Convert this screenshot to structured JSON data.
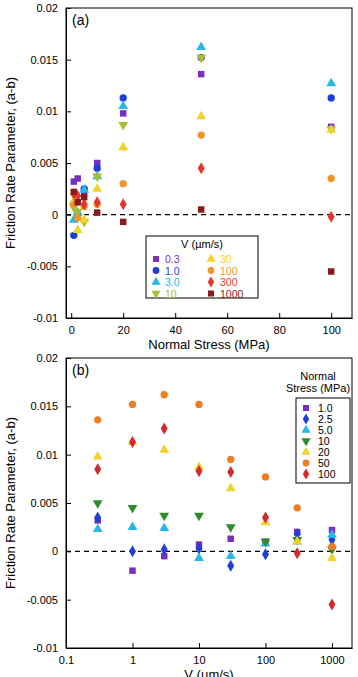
{
  "chart_data": [
    {
      "type": "scatter",
      "panel_label": "(a)",
      "x_label": "Normal Stress (MPa)",
      "y_label": "Friction Rate Parameter, (a-b)",
      "xlim": [
        -2,
        108
      ],
      "xticks": [
        0,
        20,
        40,
        60,
        80,
        100
      ],
      "ylim": [
        -0.01,
        0.02
      ],
      "yticks": [
        -0.01,
        -0.005,
        0,
        0.005,
        0.01,
        0.015,
        0.02
      ],
      "reference_lines": [
        0
      ],
      "legend": "bottom",
      "legend_title": "V (µm/s)",
      "series": [
        {
          "name": "0.3",
          "color": "#7b2fbf",
          "marker": "square",
          "x": [
            1.0,
            2.5,
            5.0,
            10,
            20,
            50,
            100
          ],
          "values": [
            0.0032,
            0.0035,
            0.0023,
            0.005,
            0.0098,
            0.0136,
            0.0085
          ]
        },
        {
          "name": "1.0",
          "color": "#1f3fd9",
          "marker": "circle",
          "x": [
            1.0,
            2.5,
            5.0,
            10,
            20,
            50,
            100
          ],
          "values": [
            -0.002,
            0.0,
            0.0025,
            0.0045,
            0.0113,
            0.0152,
            0.0113
          ]
        },
        {
          "name": "3.0",
          "color": "#29b6e8",
          "marker": "triangle",
          "x": [
            1.0,
            2.5,
            5.0,
            10,
            20,
            50,
            100
          ],
          "values": [
            -0.0005,
            0.0002,
            0.0024,
            0.0037,
            0.0105,
            0.0162,
            0.0127
          ]
        },
        {
          "name": "10",
          "color": "#a9bf2f",
          "marker": "triangle-down",
          "x": [
            1.0,
            2.5,
            5.0,
            10,
            20,
            50,
            100
          ],
          "values": [
            0.0007,
            0.0003,
            -0.0007,
            0.0037,
            0.0087,
            0.0152,
            0.0083
          ]
        },
        {
          "name": "30",
          "color": "#f2d22a",
          "marker": "triangle",
          "x": [
            1.0,
            2.5,
            5.0,
            10,
            20,
            50,
            100
          ],
          "values": [
            0.0013,
            -0.0015,
            -0.0005,
            0.0025,
            0.0065,
            0.0095,
            0.0082
          ]
        },
        {
          "name": "100",
          "color": "#f0952a",
          "marker": "circle",
          "x": [
            1.0,
            2.5,
            5.0,
            10,
            20,
            50,
            100
          ],
          "values": [
            0.001,
            -0.0003,
            0.0008,
            0.001,
            0.003,
            0.0077,
            0.0035
          ]
        },
        {
          "name": "300",
          "color": "#e3372b",
          "marker": "diamond",
          "x": [
            1.0,
            2.5,
            5.0,
            10,
            20,
            50,
            100
          ],
          "values": [
            0.002,
            0.0018,
            0.001,
            0.0012,
            0.001,
            0.0045,
            -0.0002
          ]
        },
        {
          "name": "1000",
          "color": "#8b1a1a",
          "marker": "square",
          "x": [
            1.0,
            2.5,
            5.0,
            10,
            20,
            50,
            100
          ],
          "values": [
            0.0022,
            0.0012,
            0.0017,
            0.0002,
            -0.0007,
            0.0005,
            -0.0055
          ]
        }
      ]
    },
    {
      "type": "scatter",
      "panel_label": "(b)",
      "x_label": "V (µm/s)",
      "y_label": "Friction Rate Parameter, (a-b)",
      "log": "x",
      "xlim": [
        0.1,
        2000
      ],
      "xticks": [
        0.1,
        1,
        10,
        100,
        1000
      ],
      "ylim": [
        -0.01,
        0.02
      ],
      "yticks": [
        -0.01,
        -0.005,
        0,
        0.005,
        0.01,
        0.015,
        0.02
      ],
      "reference_lines": [
        0
      ],
      "legend": "right",
      "legend_title": "Normal Stress (MPa)",
      "series": [
        {
          "name": "1.0",
          "color": "#7b2fbf",
          "marker": "square",
          "x": [
            0.3,
            1,
            3,
            10,
            30,
            100,
            300,
            1000
          ],
          "values": [
            0.0032,
            -0.002,
            -0.0005,
            0.0007,
            0.0013,
            0.001,
            0.002,
            0.0022
          ]
        },
        {
          "name": "2.5",
          "color": "#1f3fd9",
          "marker": "diamond",
          "x": [
            0.3,
            1,
            3,
            10,
            30,
            100,
            300,
            1000
          ],
          "values": [
            0.0035,
            0.0,
            0.0002,
            0.0003,
            -0.0015,
            -0.0003,
            0.0018,
            0.0012
          ]
        },
        {
          "name": "5.0",
          "color": "#29b6e8",
          "marker": "triangle",
          "x": [
            0.3,
            1,
            3,
            10,
            30,
            100,
            300,
            1000
          ],
          "values": [
            0.0023,
            0.0025,
            0.0024,
            -0.0007,
            -0.0005,
            0.0008,
            0.001,
            0.0017
          ]
        },
        {
          "name": "10",
          "color": "#2e8b2e",
          "marker": "triangle-down",
          "x": [
            0.3,
            1,
            3,
            10,
            30,
            100,
            300,
            1000
          ],
          "values": [
            0.005,
            0.0045,
            0.0037,
            0.0037,
            0.0025,
            0.001,
            0.0012,
            0.0002
          ]
        },
        {
          "name": "20",
          "color": "#f2d22a",
          "marker": "triangle",
          "x": [
            0.3,
            1,
            3,
            10,
            30,
            100,
            300,
            1000
          ],
          "values": [
            0.0098,
            0.0113,
            0.0105,
            0.0087,
            0.0065,
            0.003,
            0.001,
            -0.0007
          ]
        },
        {
          "name": "50",
          "color": "#ef7d22",
          "marker": "circle",
          "x": [
            0.3,
            1,
            3,
            10,
            30,
            100,
            300,
            1000
          ],
          "values": [
            0.0136,
            0.0152,
            0.0162,
            0.0152,
            0.0095,
            0.0077,
            0.0045,
            0.0005
          ]
        },
        {
          "name": "100",
          "color": "#d42a2a",
          "marker": "diamond",
          "x": [
            0.3,
            1,
            3,
            10,
            30,
            100,
            300,
            1000
          ],
          "values": [
            0.0085,
            0.0113,
            0.0127,
            0.0083,
            0.0082,
            0.0035,
            -0.0002,
            -0.0055
          ]
        }
      ]
    }
  ]
}
